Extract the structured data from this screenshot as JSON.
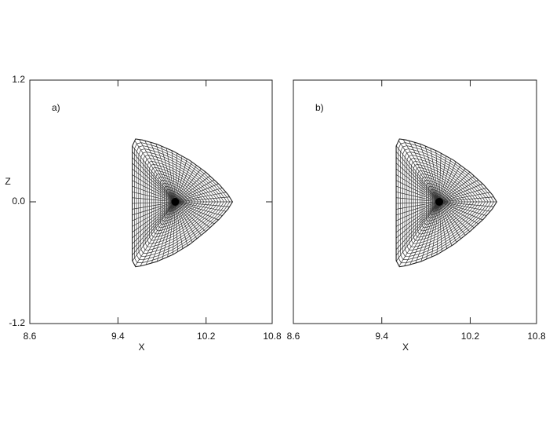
{
  "chart_data": [
    {
      "type": "mesh",
      "label": "a)",
      "xlabel": "X",
      "ylabel": "Z",
      "x": [
        10.44,
        10.4,
        10.32,
        10.2,
        10.05,
        9.9,
        9.75,
        9.62,
        9.56,
        9.53,
        9.53,
        9.53,
        9.56,
        9.62,
        9.75,
        9.9,
        10.05,
        10.2,
        10.32,
        10.4
      ],
      "values": [
        0,
        0.07,
        0.17,
        0.29,
        0.41,
        0.5,
        0.57,
        0.61,
        0.62,
        0.55,
        0,
        -0.58,
        -0.64,
        -0.63,
        -0.59,
        -0.52,
        -0.42,
        -0.29,
        -0.17,
        -0.07
      ],
      "axis_x": 9.92,
      "axis_z": 0,
      "xlim": [
        8.6,
        10.8
      ],
      "ylim": [
        -1.2,
        1.2
      ],
      "xticks": [
        8.6,
        9.4,
        10.2,
        10.8
      ],
      "yticks": [
        -1.2,
        {
          "value": 0,
          "label": "0.0"
        },
        1.2
      ]
    },
    {
      "type": "mesh",
      "label": "b)",
      "xlabel": "X",
      "x": [
        10.44,
        10.4,
        10.32,
        10.2,
        10.05,
        9.9,
        9.75,
        9.62,
        9.56,
        9.53,
        9.53,
        9.53,
        9.56,
        9.62,
        9.75,
        9.9,
        10.05,
        10.2,
        10.32,
        10.4
      ],
      "values": [
        0,
        0.07,
        0.17,
        0.29,
        0.41,
        0.5,
        0.57,
        0.61,
        0.62,
        0.55,
        0,
        -0.58,
        -0.64,
        -0.63,
        -0.59,
        -0.52,
        -0.42,
        -0.29,
        -0.17,
        -0.07
      ],
      "axis_x": 9.92,
      "axis_z": 0,
      "xlim": [
        8.6,
        10.8
      ],
      "ylim": [
        -1.2,
        1.2
      ],
      "xticks": [
        8.6,
        9.4,
        10.2,
        10.8
      ]
    }
  ]
}
